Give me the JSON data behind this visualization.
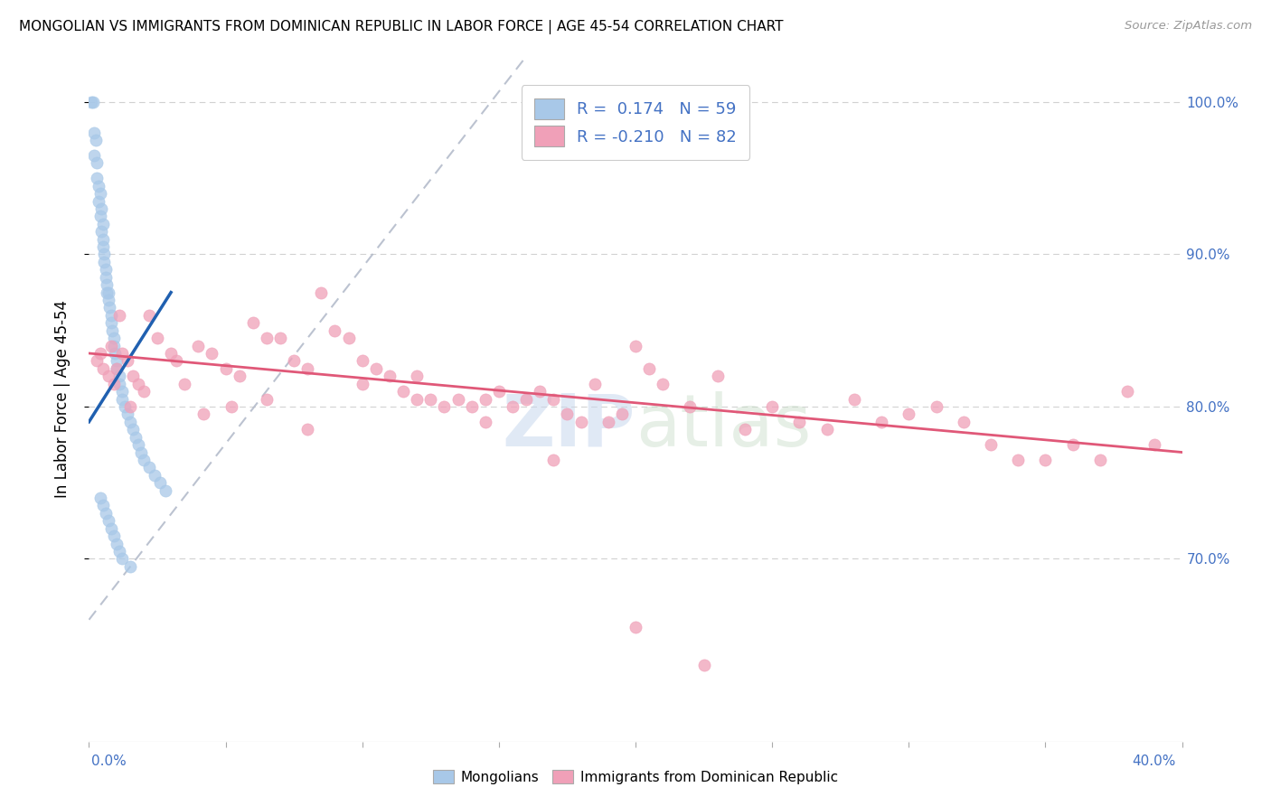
{
  "title": "MONGOLIAN VS IMMIGRANTS FROM DOMINICAN REPUBLIC IN LABOR FORCE | AGE 45-54 CORRELATION CHART",
  "source": "Source: ZipAtlas.com",
  "ylabel": "In Labor Force | Age 45-54",
  "xmin": 0.0,
  "xmax": 40.0,
  "ymin": 58.0,
  "ymax": 103.0,
  "y_ticks": [
    70.0,
    80.0,
    90.0,
    100.0
  ],
  "blue_color": "#a8c8e8",
  "pink_color": "#f0a0b8",
  "blue_line_color": "#2060b0",
  "pink_line_color": "#e05878",
  "dash_color": "#b0b8c8",
  "watermark": "ZIPatlas",
  "mongolians_label": "Mongolians",
  "dominican_label": "Immigrants from Dominican Republic",
  "blue_scatter_x": [
    0.1,
    0.15,
    0.2,
    0.2,
    0.25,
    0.3,
    0.3,
    0.35,
    0.35,
    0.4,
    0.4,
    0.45,
    0.45,
    0.5,
    0.5,
    0.5,
    0.55,
    0.55,
    0.6,
    0.6,
    0.65,
    0.65,
    0.7,
    0.7,
    0.75,
    0.8,
    0.8,
    0.85,
    0.9,
    0.9,
    0.95,
    1.0,
    1.0,
    1.1,
    1.1,
    1.2,
    1.2,
    1.3,
    1.4,
    1.5,
    1.6,
    1.7,
    1.8,
    1.9,
    2.0,
    2.2,
    2.4,
    2.6,
    2.8,
    0.4,
    0.5,
    0.6,
    0.7,
    0.8,
    0.9,
    1.0,
    1.1,
    1.2,
    1.5
  ],
  "blue_scatter_y": [
    100.0,
    100.0,
    98.0,
    96.5,
    97.5,
    96.0,
    95.0,
    94.5,
    93.5,
    94.0,
    92.5,
    93.0,
    91.5,
    92.0,
    91.0,
    90.5,
    90.0,
    89.5,
    89.0,
    88.5,
    88.0,
    87.5,
    87.5,
    87.0,
    86.5,
    86.0,
    85.5,
    85.0,
    84.5,
    84.0,
    83.5,
    83.0,
    82.5,
    82.0,
    81.5,
    81.0,
    80.5,
    80.0,
    79.5,
    79.0,
    78.5,
    78.0,
    77.5,
    77.0,
    76.5,
    76.0,
    75.5,
    75.0,
    74.5,
    74.0,
    73.5,
    73.0,
    72.5,
    72.0,
    71.5,
    71.0,
    70.5,
    70.0,
    69.5
  ],
  "pink_scatter_x": [
    0.3,
    0.5,
    0.7,
    0.9,
    1.0,
    1.2,
    1.4,
    1.6,
    1.8,
    2.0,
    2.5,
    3.0,
    3.5,
    4.0,
    4.5,
    5.0,
    5.5,
    6.0,
    6.5,
    7.0,
    7.5,
    8.0,
    8.5,
    9.0,
    9.5,
    10.0,
    10.5,
    11.0,
    11.5,
    12.0,
    12.5,
    13.0,
    13.5,
    14.0,
    14.5,
    15.0,
    15.5,
    16.0,
    16.5,
    17.0,
    17.5,
    18.0,
    18.5,
    19.0,
    19.5,
    20.0,
    20.5,
    21.0,
    22.0,
    23.0,
    24.0,
    25.0,
    26.0,
    27.0,
    28.0,
    29.0,
    30.0,
    31.0,
    32.0,
    33.0,
    34.0,
    35.0,
    36.0,
    37.0,
    38.0,
    39.0,
    0.4,
    0.8,
    1.1,
    1.5,
    2.2,
    3.2,
    4.2,
    5.2,
    6.5,
    8.0,
    10.0,
    12.0,
    14.5,
    17.0,
    20.0,
    22.5
  ],
  "pink_scatter_y": [
    83.0,
    82.5,
    82.0,
    81.5,
    82.5,
    83.5,
    83.0,
    82.0,
    81.5,
    81.0,
    84.5,
    83.5,
    81.5,
    84.0,
    83.5,
    82.5,
    82.0,
    85.5,
    84.5,
    84.5,
    83.0,
    82.5,
    87.5,
    85.0,
    84.5,
    83.0,
    82.5,
    82.0,
    81.0,
    80.5,
    80.5,
    80.0,
    80.5,
    80.0,
    80.5,
    81.0,
    80.0,
    80.5,
    81.0,
    80.5,
    79.5,
    79.0,
    81.5,
    79.0,
    79.5,
    84.0,
    82.5,
    81.5,
    80.0,
    82.0,
    78.5,
    80.0,
    79.0,
    78.5,
    80.5,
    79.0,
    79.5,
    80.0,
    79.0,
    77.5,
    76.5,
    76.5,
    77.5,
    76.5,
    81.0,
    77.5,
    83.5,
    84.0,
    86.0,
    80.0,
    86.0,
    83.0,
    79.5,
    80.0,
    80.5,
    78.5,
    81.5,
    82.0,
    79.0,
    76.5,
    65.5,
    63.0
  ],
  "blue_trend_x0": 0.0,
  "blue_trend_x1": 3.0,
  "blue_trend_y0": 79.0,
  "blue_trend_y1": 87.5,
  "pink_trend_x0": 0.0,
  "pink_trend_x1": 40.0,
  "pink_trend_y0": 83.5,
  "pink_trend_y1": 77.0,
  "dash_line_x0": 0.0,
  "dash_line_x1": 16.0,
  "dash_line_y0": 66.0,
  "dash_line_y1": 103.0
}
